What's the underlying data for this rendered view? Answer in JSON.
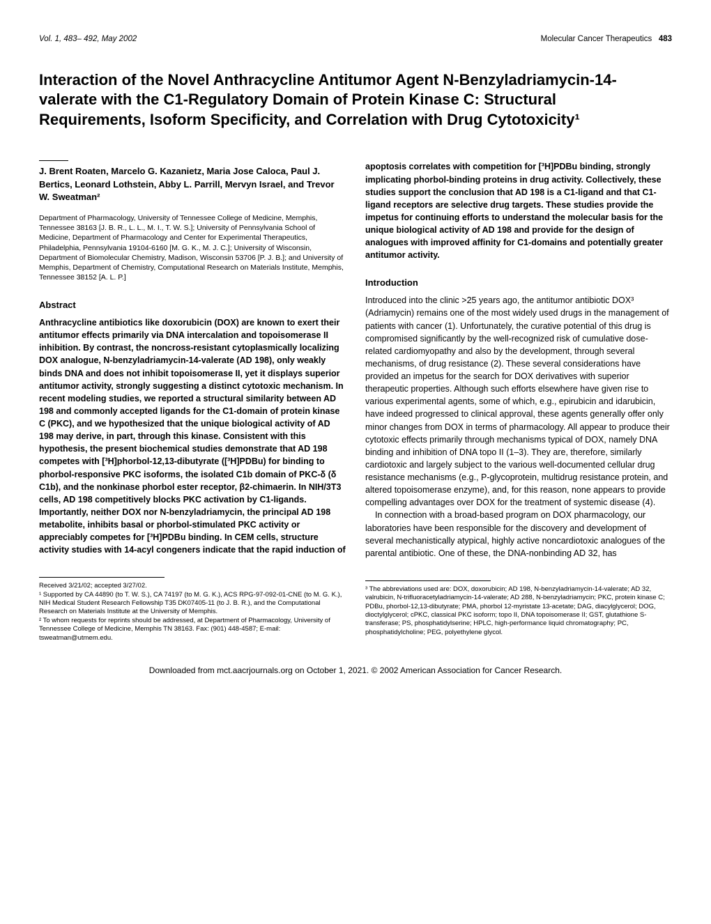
{
  "header": {
    "left": "Vol. 1, 483– 492, May 2002",
    "right_text": "Molecular Cancer Therapeutics",
    "page_num": "483"
  },
  "title": "Interaction of the Novel Anthracycline Antitumor Agent N-Benzyladriamycin-14-valerate with the C1-Regulatory Domain of Protein Kinase C: Structural Requirements, Isoform Specificity, and Correlation with Drug Cytotoxicity¹",
  "authors": "J. Brent Roaten, Marcelo G. Kazanietz, Maria Jose Caloca, Paul J. Bertics, Leonard Lothstein, Abby L. Parrill, Mervyn Israel, and Trevor W. Sweatman²",
  "affiliations": "Department of Pharmacology, University of Tennessee College of Medicine, Memphis, Tennessee 38163 [J. B. R., L. L., M. I., T. W. S.]; University of Pennsylvania School of Medicine, Department of Pharmacology and Center for Experimental Therapeutics, Philadelphia, Pennsylvania 19104-6160 [M. G. K., M. J. C.]; University of Wisconsin, Department of Biomolecular Chemistry, Madison, Wisconsin 53706 [P. J. B.]; and University of Memphis, Department of Chemistry, Computational Research on Materials Institute, Memphis, Tennessee 38152 [A. L. P.]",
  "section_abstract_head": "Abstract",
  "abstract_col1": "Anthracycline antibiotics like doxorubicin (DOX) are known to exert their antitumor effects primarily via DNA intercalation and topoisomerase II inhibition. By contrast, the noncross-resistant cytoplasmically localizing DOX analogue, N-benzyladriamycin-14-valerate (AD 198), only weakly binds DNA and does not inhibit topoisomerase II, yet it displays superior antitumor activity, strongly suggesting a distinct cytotoxic mechanism. In recent modeling studies, we reported a structural similarity between AD 198 and commonly accepted ligands for the C1-domain of protein kinase C (PKC), and we hypothesized that the unique biological activity of AD 198 may derive, in part, through this kinase. Consistent with this hypothesis, the present biochemical studies demonstrate that AD 198 competes with [³H]phorbol-12,13-dibutyrate ([³H]PDBu) for binding to phorbol-responsive PKC isoforms, the isolated C1b domain of PKC-δ (δ C1b), and the nonkinase phorbol ester receptor, β2-chimaerin. In NIH/3T3 cells, AD 198 competitively blocks PKC activation by C1-ligands. Importantly, neither DOX nor N-benzyladriamycin, the principal AD 198 metabolite, inhibits basal or phorbol-stimulated PKC activity or appreciably competes for [³H]PDBu binding. In CEM cells, structure activity studies with 14-acyl congeners indicate that the rapid induction of",
  "abstract_col2": "apoptosis correlates with competition for [³H]PDBu binding, strongly implicating phorbol-binding proteins in drug activity. Collectively, these studies support the conclusion that AD 198 is a C1-ligand and that C1-ligand receptors are selective drug targets. These studies provide the impetus for continuing efforts to understand the molecular basis for the unique biological activity of AD 198 and provide for the design of analogues with improved affinity for C1-domains and potentially greater antitumor activity.",
  "section_intro_head": "Introduction",
  "intro_p1": "Introduced into the clinic >25 years ago, the antitumor antibiotic DOX³ (Adriamycin) remains one of the most widely used drugs in the management of patients with cancer (1). Unfortunately, the curative potential of this drug is compromised significantly by the well-recognized risk of cumulative dose-related cardiomyopathy and also by the development, through several mechanisms, of drug resistance (2). These several considerations have provided an impetus for the search for DOX derivatives with superior therapeutic properties. Although such efforts elsewhere have given rise to various experimental agents, some of which, e.g., epirubicin and idarubicin, have indeed progressed to clinical approval, these agents generally offer only minor changes from DOX in terms of pharmacology. All appear to produce their cytotoxic effects primarily through mechanisms typical of DOX, namely DNA binding and inhibition of DNA topo II (1–3). They are, therefore, similarly cardiotoxic and largely subject to the various well-documented cellular drug resistance mechanisms (e.g., P-glycoprotein, multidrug resistance protein, and altered topoisomerase enzyme), and, for this reason, none appears to provide compelling advantages over DOX for the treatment of systemic disease (4).",
  "intro_p2": "In connection with a broad-based program on DOX pharmacology, our laboratories have been responsible for the discovery and development of several mechanistically atypical, highly active noncardiotoxic analogues of the parental antibiotic. One of these, the DNA-nonbinding AD 32, has",
  "footnotes_left": {
    "received": "Received 3/21/02; accepted 3/27/02.",
    "fn1": "¹ Supported by CA 44890 (to T. W. S.), CA 74197 (to M. G. K.), ACS RPG-97-092-01-CNE (to M. G. K.), NIH Medical Student Research Fellowship T35 DK07405-11 (to J. B. R.), and the Computational Research on Materials Institute at the University of Memphis.",
    "fn2": "² To whom requests for reprints should be addressed, at Department of Pharmacology, University of Tennessee College of Medicine, Memphis TN 38163. Fax: (901) 448-4587; E-mail: tsweatman@utmem.edu."
  },
  "footnotes_right": {
    "fn3": "³ The abbreviations used are: DOX, doxorubicin; AD 198, N-benzyladriamycin-14-valerate; AD 32, valrubicin, N-trifluoracetyladriamycin-14-valerate; AD 288, N-benzyladriamycin; PKC, protein kinase C; PDBu, phorbol-12,13-dibutyrate; PMA, phorbol 12-myristate 13-acetate; DAG, diacylglycerol; DOG, dioctylglycerol; cPKC, classical PKC isoform; topo II, DNA topoisomerase II; GST, glutathione S-transferase; PS, phosphatidylserine; HPLC, high-performance liquid chromatography; PC, phosphatidylcholine; PEG, polyethylene glycol."
  },
  "footer": "Downloaded from mct.aacrjournals.org on October 1, 2021. © 2002 American Association for Cancer Research."
}
